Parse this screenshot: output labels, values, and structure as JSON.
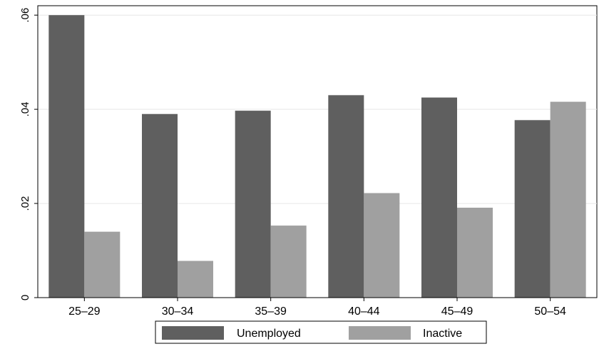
{
  "chart_data": {
    "type": "bar",
    "categories": [
      "25–29",
      "30–34",
      "35–39",
      "40–44",
      "45–49",
      "50–54"
    ],
    "series": [
      {
        "name": "Unemployed",
        "color": "#5f5f5f",
        "values": [
          0.06,
          0.039,
          0.0397,
          0.043,
          0.0425,
          0.0377
        ]
      },
      {
        "name": "Inactive",
        "color": "#a0a0a0",
        "values": [
          0.014,
          0.0078,
          0.0153,
          0.0222,
          0.0191,
          0.0416
        ]
      }
    ],
    "title": "",
    "xlabel": "",
    "ylabel": "",
    "ylim": [
      0,
      0.062
    ],
    "yticks": [
      0,
      0.02,
      0.04,
      0.06
    ],
    "ytick_labels": [
      "0",
      ".02",
      ".04",
      ".06"
    ],
    "grid": true,
    "legend_position": "bottom"
  }
}
